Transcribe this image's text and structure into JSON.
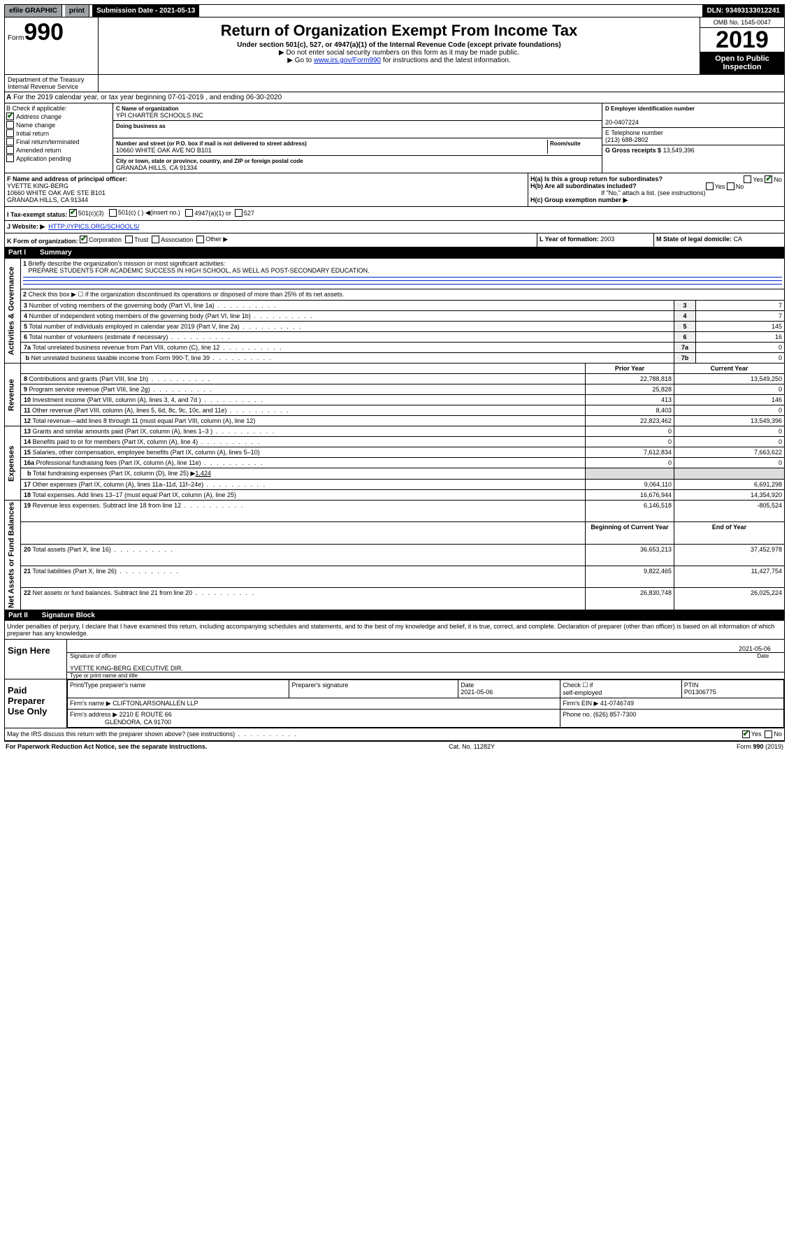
{
  "topbar": {
    "efile": "efile GRAPHIC",
    "print": "print",
    "submission_label": "Submission Date - 2021-05-13",
    "dln": "DLN: 93493133012241"
  },
  "header": {
    "form_word": "Form",
    "form_num": "990",
    "title": "Return of Organization Exempt From Income Tax",
    "sub1": "Under section 501(c), 527, or 4947(a)(1) of the Internal Revenue Code (except private foundations)",
    "sub2": "▶ Do not enter social security numbers on this form as it may be made public.",
    "sub3a": "▶ Go to ",
    "sub3link": "www.irs.gov/Form990",
    "sub3b": " for instructions and the latest information.",
    "omb": "OMB No. 1545-0047",
    "year": "2019",
    "otp1": "Open to Public",
    "otp2": "Inspection",
    "dept1": "Department of the Treasury",
    "dept2": "Internal Revenue Service"
  },
  "rowA": {
    "prefix": "A",
    "text": "For the 2019 calendar year, or tax year beginning 07-01-2019    , and ending 06-30-2020"
  },
  "colB": {
    "label": "B Check if applicable:",
    "items": [
      {
        "txt": "Address change",
        "ck": true
      },
      {
        "txt": "Name change",
        "ck": false
      },
      {
        "txt": "Initial return",
        "ck": false
      },
      {
        "txt": "Final return/terminated",
        "ck": false
      },
      {
        "txt": "Amended return",
        "ck": false
      },
      {
        "txt": "Application pending",
        "ck": false
      }
    ]
  },
  "colC": {
    "name_lbl": "C Name of organization",
    "name": "YPI CHARTER SCHOOLS INC",
    "dba_lbl": "Doing business as",
    "dba": "",
    "addr_lbl": "Number and street (or P.O. box if mail is not delivered to street address)",
    "room_lbl": "Room/suite",
    "addr": "10660 WHITE OAK AVE NO B101",
    "city_lbl": "City or town, state or province, country, and ZIP or foreign postal code",
    "city": "GRANADA HILLS, CA  91334"
  },
  "colD": {
    "ein_lbl": "D Employer identification number",
    "ein": "20-0407224",
    "tel_lbl": "E Telephone number",
    "tel": "(213) 688-2802",
    "gross_lbl": "G Gross receipts $",
    "gross": "13,549,396"
  },
  "rowF": {
    "lbl": "F  Name and address of principal officer:",
    "name": "YVETTE KING-BERG",
    "addr": "10660 WHITE OAK AVE STE B101",
    "city": "GRANADA HILLS, CA  91344"
  },
  "rowH": {
    "a": "H(a)  Is this a group return for subordinates?",
    "b": "H(b)  Are all subordinates included?",
    "note": "If \"No,\" attach a list. (see instructions)",
    "c": "H(c)  Group exemption number ▶"
  },
  "rowI": {
    "lbl": "I     Tax-exempt status:",
    "o1": "501(c)(3)",
    "o2": "501(c) (  ) ◀(insert no.)",
    "o3": "4947(a)(1) or",
    "o4": "527"
  },
  "rowJ": {
    "lbl": "J    Website: ▶",
    "val": "HTTP://YPICS.ORG/SCHOOLS/"
  },
  "rowK": {
    "lbl": "K Form of organization:",
    "o1": "Corporation",
    "o2": "Trust",
    "o3": "Association",
    "o4": "Other ▶",
    "l_lbl": "L Year of formation:",
    "l_val": "2003",
    "m_lbl": "M State of legal domicile:",
    "m_val": "CA"
  },
  "part1": {
    "label": "Part I",
    "title": "Summary"
  },
  "sidebars": {
    "gov": "Activities & Governance",
    "rev": "Revenue",
    "exp": "Expenses",
    "net": "Net Assets or Fund Balances"
  },
  "lines": {
    "l1": {
      "t": "Briefly describe the organization's mission or most significant activities:",
      "v": "PREPARE STUDENTS FOR ACADEMIC SUCCESS IN HIGH SCHOOL, AS WELL AS POST-SECONDARY EDUCATION."
    },
    "l2": "Check this box ▶ ☐  if the organization discontinued its operations or disposed of more than 25% of its net assets.",
    "l3": {
      "t": "Number of voting members of the governing body (Part VI, line 1a)",
      "n": "3",
      "v": "7"
    },
    "l4": {
      "t": "Number of independent voting members of the governing body (Part VI, line 1b)",
      "n": "4",
      "v": "7"
    },
    "l5": {
      "t": "Total number of individuals employed in calendar year 2019 (Part V, line 2a)",
      "n": "5",
      "v": "145"
    },
    "l6": {
      "t": "Total number of volunteers (estimate if necessary)",
      "n": "6",
      "v": "16"
    },
    "l7a": {
      "t": "Total unrelated business revenue from Part VIII, column (C), line 12",
      "n": "7a",
      "v": "0"
    },
    "l7b": {
      "t": "Net unrelated business taxable income from Form 990-T, line 39",
      "n": "7b",
      "v": "0"
    },
    "hdr": {
      "py": "Prior Year",
      "cy": "Current Year"
    },
    "l8": {
      "t": "Contributions and grants (Part VIII, line 1h)",
      "py": "22,788,818",
      "cy": "13,549,250"
    },
    "l9": {
      "t": "Program service revenue (Part VIII, line 2g)",
      "py": "25,828",
      "cy": "0"
    },
    "l10": {
      "t": "Investment income (Part VIII, column (A), lines 3, 4, and 7d )",
      "py": "413",
      "cy": "146"
    },
    "l11": {
      "t": "Other revenue (Part VIII, column (A), lines 5, 6d, 8c, 9c, 10c, and 11e)",
      "py": "8,403",
      "cy": "0"
    },
    "l12": {
      "t": "Total revenue—add lines 8 through 11 (must equal Part VIII, column (A), line 12)",
      "py": "22,823,462",
      "cy": "13,549,396"
    },
    "l13": {
      "t": "Grants and similar amounts paid (Part IX, column (A), lines 1–3 )",
      "py": "0",
      "cy": "0"
    },
    "l14": {
      "t": "Benefits paid to or for members (Part IX, column (A), line 4)",
      "py": "0",
      "cy": "0"
    },
    "l15": {
      "t": "Salaries, other compensation, employee benefits (Part IX, column (A), lines 5–10)",
      "py": "7,612,834",
      "cy": "7,663,622"
    },
    "l16a": {
      "t": "Professional fundraising fees (Part IX, column (A), line 11e)",
      "py": "0",
      "cy": "0"
    },
    "l16b": {
      "t": "Total fundraising expenses (Part IX, column (D), line 25) ▶",
      "v": "1,424"
    },
    "l17": {
      "t": "Other expenses (Part IX, column (A), lines 11a–11d, 11f–24e)",
      "py": "9,064,110",
      "cy": "6,691,298"
    },
    "l18": {
      "t": "Total expenses. Add lines 13–17 (must equal Part IX, column (A), line 25)",
      "py": "16,676,944",
      "cy": "14,354,920"
    },
    "l19": {
      "t": "Revenue less expenses. Subtract line 18 from line 12",
      "py": "6,146,518",
      "cy": "-805,524"
    },
    "hdr2": {
      "py": "Beginning of Current Year",
      "cy": "End of Year"
    },
    "l20": {
      "t": "Total assets (Part X, line 16)",
      "py": "36,653,213",
      "cy": "37,452,978"
    },
    "l21": {
      "t": "Total liabilities (Part X, line 26)",
      "py": "9,822,465",
      "cy": "11,427,754"
    },
    "l22": {
      "t": "Net assets or fund balances. Subtract line 21 from line 20",
      "py": "26,830,748",
      "cy": "26,025,224"
    }
  },
  "part2": {
    "label": "Part II",
    "title": "Signature Block"
  },
  "perjury": "Under penalties of perjury, I declare that I have examined this return, including accompanying schedules and statements, and to the best of my knowledge and belief, it is true, correct, and complete. Declaration of preparer (other than officer) is based on all information of which preparer has any knowledge.",
  "sign": {
    "here": "Sign Here",
    "sig_lbl": "Signature of officer",
    "date": "2021-05-06",
    "date_lbl": "Date",
    "name": "YVETTE KING-BERG  EXECUTIVE DIR.",
    "name_lbl": "Type or print name and title"
  },
  "paid": {
    "here": "Paid Preparer Use Only",
    "h1": "Print/Type preparer's name",
    "h2": "Preparer's signature",
    "h3": "Date",
    "h3v": "2021-05-06",
    "h4a": "Check ☐ if",
    "h4b": "self-employed",
    "h5": "PTIN",
    "h5v": "P01306775",
    "firm_lbl": "Firm's name    ▶",
    "firm": "CLIFTONLARSONALLEN LLP",
    "ein_lbl": "Firm's EIN ▶",
    "ein": "41-0746749",
    "addr_lbl": "Firm's address ▶",
    "addr1": "2210 E ROUTE 66",
    "addr2": "GLENDORA, CA  91700",
    "ph_lbl": "Phone no.",
    "ph": "(626) 857-7300"
  },
  "discuss": "May the IRS discuss this return with the preparer shown above? (see instructions)",
  "footer": {
    "l": "For Paperwork Reduction Act Notice, see the separate instructions.",
    "m": "Cat. No. 11282Y",
    "r": "Form 990 (2019)"
  },
  "yes": "Yes",
  "no": "No"
}
